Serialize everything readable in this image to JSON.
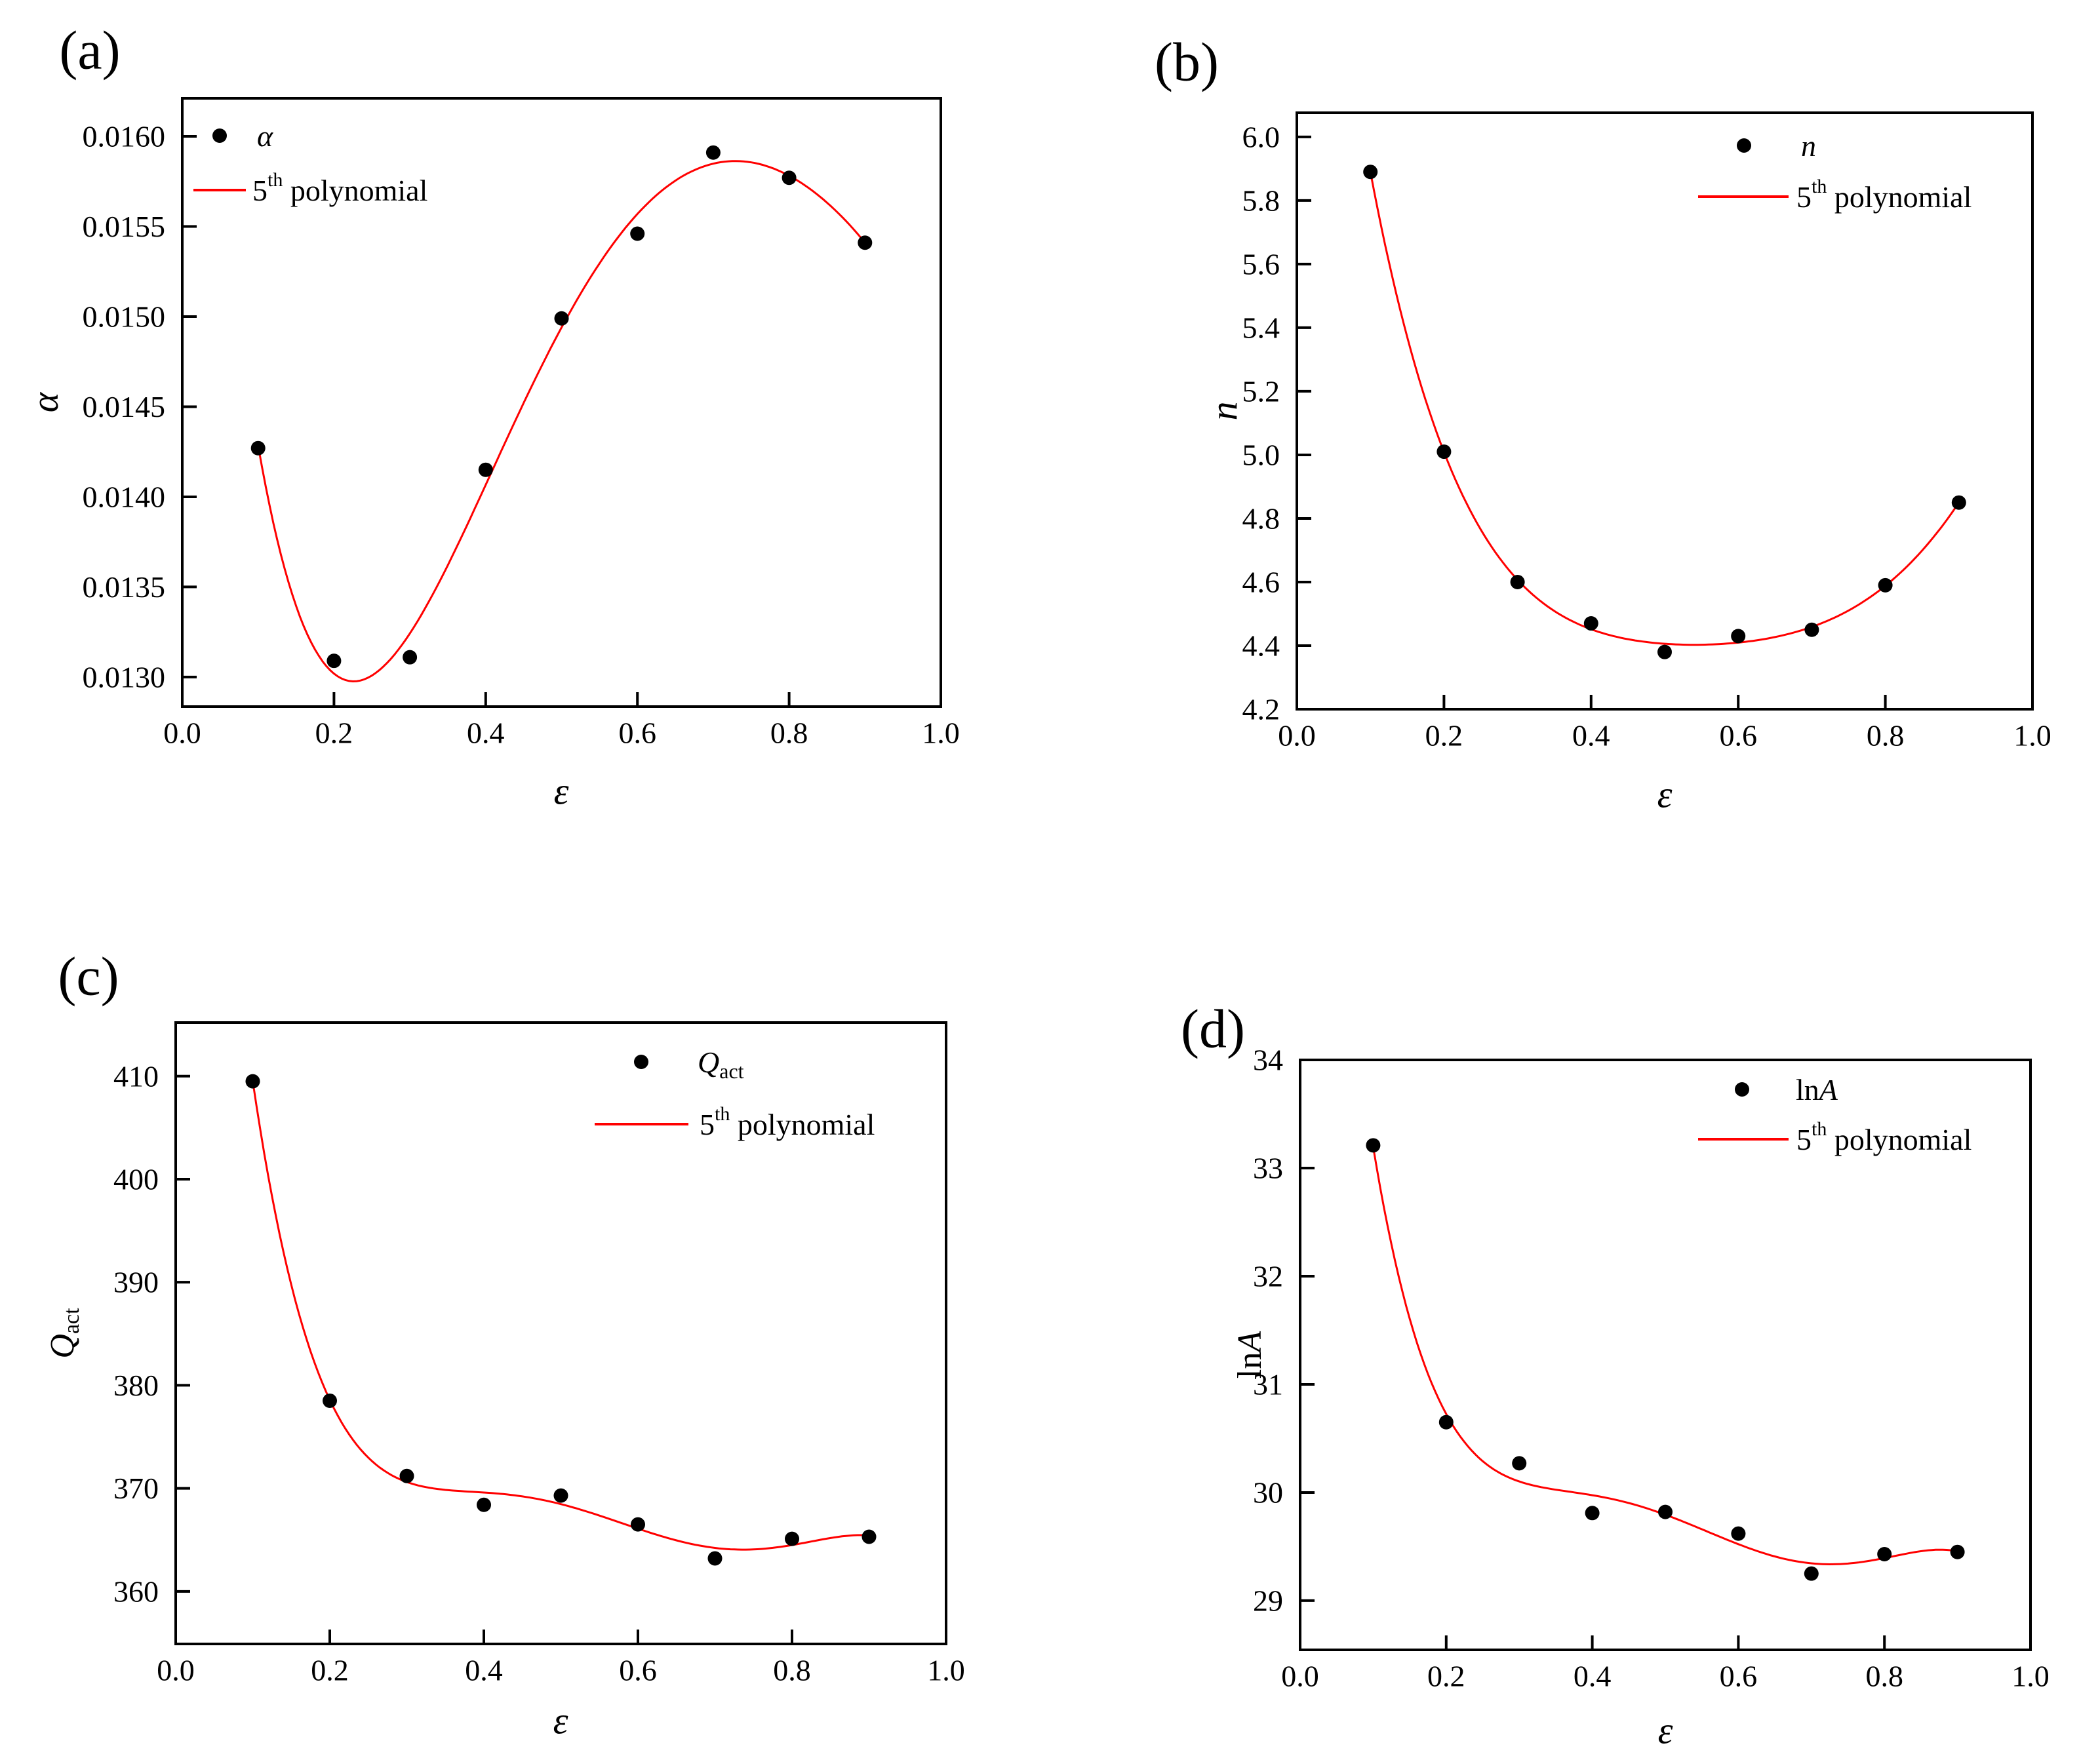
{
  "figure": {
    "background_color": "#ffffff",
    "marker_color": "#000000",
    "curve_color": "#ff0000",
    "frame_color": "#000000"
  },
  "chart_data": [
    {
      "type": "scatter",
      "panel_label": "(a)",
      "xlabel": "ε",
      "ylabel": {
        "prefix": "",
        "main": "α",
        "sub": ""
      },
      "legend_series": {
        "prefix": "",
        "main": "α",
        "sub": ""
      },
      "legend_fit": {
        "base": "5",
        "sup": "th",
        "rest": " polynomial"
      },
      "legend_position": "upper-left",
      "x": [
        0.1,
        0.2,
        0.3,
        0.4,
        0.5,
        0.6,
        0.7,
        0.8,
        0.9
      ],
      "values": [
        0.01427,
        0.01309,
        0.01311,
        0.01415,
        0.01499,
        0.01546,
        0.01591,
        0.01577,
        0.01541
      ],
      "fit_type": "5th-degree polynomial",
      "xlim": [
        0.0,
        1.0
      ],
      "ylim": [
        0.012836,
        0.016211
      ],
      "xticks": [
        0.0,
        0.2,
        0.4,
        0.6,
        0.8,
        1.0
      ],
      "xtick_labels": [
        "0.0",
        "0.2",
        "0.4",
        "0.6",
        "0.8",
        "1.0"
      ],
      "yticks": [
        0.013,
        0.0135,
        0.014,
        0.0145,
        0.015,
        0.0155,
        0.016
      ],
      "ytick_labels": [
        "0.0130",
        "0.0135",
        "0.0140",
        "0.0145",
        "0.0150",
        "0.0155",
        "0.0160"
      ],
      "grid": "off"
    },
    {
      "type": "scatter",
      "panel_label": "(b)",
      "xlabel": "ε",
      "ylabel": {
        "prefix": "",
        "main": "n",
        "sub": ""
      },
      "legend_series": {
        "prefix": "",
        "main": "n",
        "sub": ""
      },
      "legend_fit": {
        "base": "5",
        "sup": "th",
        "rest": " polynomial"
      },
      "legend_position": "upper-right",
      "x": [
        0.1,
        0.2,
        0.3,
        0.4,
        0.5,
        0.6,
        0.7,
        0.8,
        0.9
      ],
      "values": [
        5.89,
        5.01,
        4.6,
        4.47,
        4.38,
        4.43,
        4.45,
        4.59,
        4.85
      ],
      "fit_type": "5th-degree polynomial",
      "xlim": [
        0.0,
        1.0
      ],
      "ylim": [
        4.2,
        6.076
      ],
      "xticks": [
        0.0,
        0.2,
        0.4,
        0.6,
        0.8,
        1.0
      ],
      "xtick_labels": [
        "0.0",
        "0.2",
        "0.4",
        "0.6",
        "0.8",
        "1.0"
      ],
      "yticks": [
        4.2,
        4.4,
        4.6,
        4.8,
        5.0,
        5.2,
        5.4,
        5.6,
        5.8,
        6.0
      ],
      "ytick_labels": [
        "4.2",
        "4.4",
        "4.6",
        "4.8",
        "5.0",
        "5.2",
        "5.4",
        "5.6",
        "5.8",
        "6.0"
      ],
      "grid": "off"
    },
    {
      "type": "scatter",
      "panel_label": "(c)",
      "xlabel": "ε",
      "ylabel": {
        "prefix": "",
        "main": "Q",
        "sub": "act"
      },
      "legend_series": {
        "prefix": "",
        "main": "Q",
        "sub": "act"
      },
      "legend_fit": {
        "base": "5",
        "sup": "th",
        "rest": " polynomial"
      },
      "legend_position": "upper-right",
      "x": [
        0.1,
        0.2,
        0.3,
        0.4,
        0.5,
        0.6,
        0.7,
        0.8,
        0.9
      ],
      "values": [
        409.5,
        378.5,
        371.2,
        368.4,
        369.3,
        366.5,
        363.2,
        365.1,
        365.3
      ],
      "fit_type": "5th-degree polynomial",
      "xlim": [
        0.0,
        1.0
      ],
      "ylim": [
        354.9,
        415.2
      ],
      "xticks": [
        0.0,
        0.2,
        0.4,
        0.6,
        0.8,
        1.0
      ],
      "xtick_labels": [
        "0.0",
        "0.2",
        "0.4",
        "0.6",
        "0.8",
        "1.0"
      ],
      "yticks": [
        360,
        370,
        380,
        390,
        400,
        410
      ],
      "ytick_labels": [
        "360",
        "370",
        "380",
        "390",
        "400",
        "410"
      ],
      "grid": "off"
    },
    {
      "type": "scatter",
      "panel_label": "(d)",
      "xlabel": "ε",
      "ylabel": {
        "prefix": "ln",
        "main": "A",
        "sub": ""
      },
      "legend_series": {
        "prefix": "ln",
        "main": "A",
        "sub": ""
      },
      "legend_fit": {
        "base": "5",
        "sup": "th",
        "rest": " polynomial"
      },
      "legend_position": "upper-right",
      "x": [
        0.1,
        0.2,
        0.3,
        0.4,
        0.5,
        0.6,
        0.7,
        0.8,
        0.9
      ],
      "values": [
        33.21,
        30.65,
        30.27,
        29.81,
        29.82,
        29.62,
        29.25,
        29.43,
        29.45
      ],
      "fit_type": "5th-degree polynomial",
      "xlim": [
        0.0,
        1.0
      ],
      "ylim": [
        28.545,
        34.0
      ],
      "xticks": [
        0.0,
        0.2,
        0.4,
        0.6,
        0.8,
        1.0
      ],
      "xtick_labels": [
        "0.0",
        "0.2",
        "0.4",
        "0.6",
        "0.8",
        "1.0"
      ],
      "yticks": [
        29,
        30,
        31,
        32,
        33,
        34
      ],
      "ytick_labels": [
        "29",
        "30",
        "31",
        "32",
        "33",
        "34"
      ],
      "grid": "off"
    }
  ]
}
